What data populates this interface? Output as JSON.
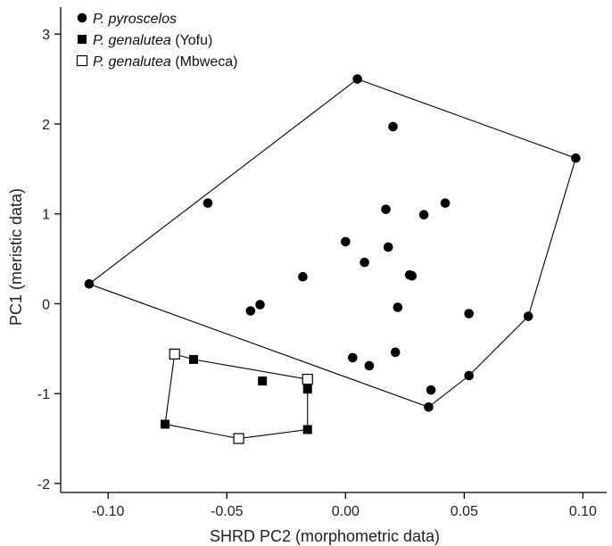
{
  "chart_data": {
    "type": "scatter",
    "xlabel": "SHRD  PC2 (morphometric data)",
    "ylabel": "PC1 (meristic data)",
    "xlim": [
      -0.12,
      0.11
    ],
    "ylim": [
      -2.1,
      3.3
    ],
    "xticks": [
      -0.1,
      -0.05,
      0.0,
      0.05,
      0.1
    ],
    "xtick_labels": [
      "-0.10",
      "-0.05",
      "0.00",
      "0.05",
      "0.10"
    ],
    "yticks": [
      -2,
      -1,
      0,
      1,
      2,
      3
    ],
    "ytick_labels": [
      "-2",
      "-1",
      "0",
      "1",
      "2",
      "3"
    ],
    "grid": false,
    "legend_position": "top-left",
    "series": [
      {
        "name": "P. pyroscelos",
        "label_italic": "P. pyroscelos",
        "label_plain": "",
        "marker": "filled-circle",
        "points": [
          [
            0.005,
            2.5
          ],
          [
            0.02,
            1.97
          ],
          [
            0.097,
            1.62
          ],
          [
            -0.058,
            1.12
          ],
          [
            0.017,
            1.05
          ],
          [
            0.033,
            0.99
          ],
          [
            0.042,
            1.12
          ],
          [
            0.0,
            0.69
          ],
          [
            0.018,
            0.63
          ],
          [
            0.008,
            0.46
          ],
          [
            -0.018,
            0.3
          ],
          [
            0.027,
            0.32
          ],
          [
            0.028,
            0.31
          ],
          [
            -0.108,
            0.22
          ],
          [
            -0.04,
            -0.08
          ],
          [
            -0.036,
            -0.01
          ],
          [
            0.022,
            -0.04
          ],
          [
            0.052,
            -0.11
          ],
          [
            0.077,
            -0.14
          ],
          [
            0.021,
            -0.54
          ],
          [
            0.003,
            -0.6
          ],
          [
            0.01,
            -0.69
          ],
          [
            0.052,
            -0.8
          ],
          [
            0.036,
            -0.96
          ],
          [
            0.035,
            -1.15
          ]
        ],
        "hull": [
          [
            -0.108,
            0.22
          ],
          [
            0.005,
            2.5
          ],
          [
            0.097,
            1.62
          ],
          [
            0.077,
            -0.14
          ],
          [
            0.052,
            -0.8
          ],
          [
            0.035,
            -1.15
          ]
        ]
      },
      {
        "name": "P. genalutea (Yofu)",
        "label_italic": "P. genalutea",
        "label_plain": " (Yofu)",
        "marker": "filled-square",
        "points": [
          [
            -0.064,
            -0.62
          ],
          [
            -0.035,
            -0.86
          ],
          [
            -0.016,
            -0.95
          ],
          [
            -0.016,
            -1.4
          ],
          [
            -0.076,
            -1.34
          ]
        ]
      },
      {
        "name": "P. genalutea (Mbweca)",
        "label_italic": "P. genalutea",
        "label_plain": " (Mbweca)",
        "marker": "open-square",
        "points": [
          [
            -0.072,
            -0.56
          ],
          [
            -0.016,
            -0.84
          ],
          [
            -0.045,
            -1.5
          ]
        ]
      }
    ],
    "genalutea_hull": [
      [
        -0.072,
        -0.56
      ],
      [
        -0.064,
        -0.62
      ],
      [
        -0.016,
        -0.84
      ],
      [
        -0.016,
        -1.4
      ],
      [
        -0.045,
        -1.5
      ],
      [
        -0.076,
        -1.34
      ]
    ]
  }
}
